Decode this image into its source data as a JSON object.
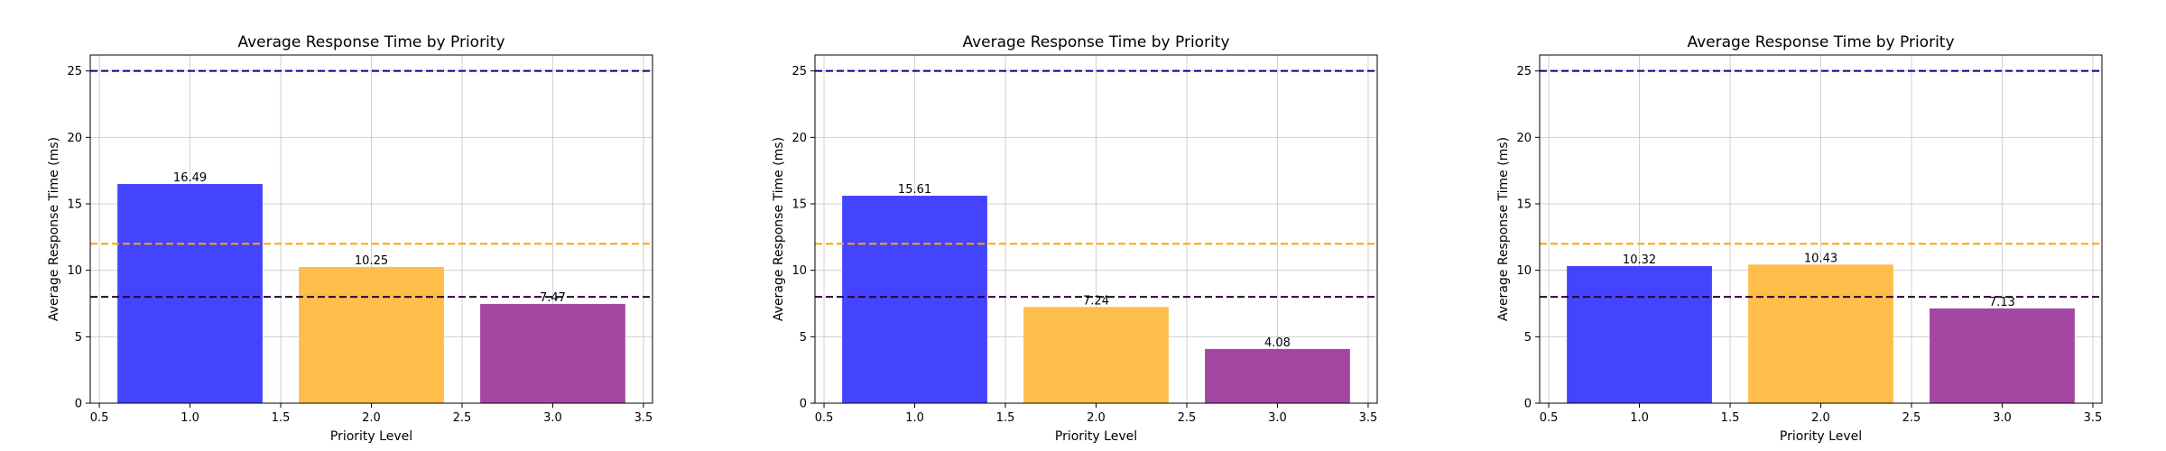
{
  "chart_data": [
    {
      "type": "bar",
      "title": "Average Response Time by Priority",
      "xlabel": "Priority Level",
      "ylabel": "Average Response Time (ms)",
      "x": [
        1.0,
        2.0,
        3.0
      ],
      "values": [
        16.49,
        10.25,
        7.47
      ],
      "value_labels": [
        "16.49",
        "10.25",
        "7.47"
      ],
      "bar_width": 0.8,
      "bar_colors": [
        "#4444ff",
        "#ffbd4a",
        "#a347a3"
      ],
      "xlim": [
        0.45,
        3.55
      ],
      "ylim": [
        0,
        26.2
      ],
      "xticks": [
        0.5,
        1.0,
        1.5,
        2.0,
        2.5,
        3.0,
        3.5
      ],
      "xtick_labels": [
        "0.5",
        "1.0",
        "1.5",
        "2.0",
        "2.5",
        "3.0",
        "3.5"
      ],
      "yticks": [
        0,
        5,
        10,
        15,
        20,
        25
      ],
      "ytick_labels": [
        "0",
        "5",
        "10",
        "15",
        "20",
        "25"
      ],
      "reference_lines": [
        {
          "y": 25,
          "color": "#00008b"
        },
        {
          "y": 12,
          "color": "#ffa500"
        },
        {
          "y": 8,
          "color": "#2b0033"
        }
      ],
      "grid": true
    },
    {
      "type": "bar",
      "title": "Average Response Time by Priority",
      "xlabel": "Priority Level",
      "ylabel": "Average Response Time (ms)",
      "x": [
        1.0,
        2.0,
        3.0
      ],
      "values": [
        15.61,
        7.24,
        4.08
      ],
      "value_labels": [
        "15.61",
        "7.24",
        "4.08"
      ],
      "bar_width": 0.8,
      "bar_colors": [
        "#4444ff",
        "#ffbd4a",
        "#a347a3"
      ],
      "xlim": [
        0.45,
        3.55
      ],
      "ylim": [
        0,
        26.2
      ],
      "xticks": [
        0.5,
        1.0,
        1.5,
        2.0,
        2.5,
        3.0,
        3.5
      ],
      "xtick_labels": [
        "0.5",
        "1.0",
        "1.5",
        "2.0",
        "2.5",
        "3.0",
        "3.5"
      ],
      "yticks": [
        0,
        5,
        10,
        15,
        20,
        25
      ],
      "ytick_labels": [
        "0",
        "5",
        "10",
        "15",
        "20",
        "25"
      ],
      "reference_lines": [
        {
          "y": 25,
          "color": "#00008b"
        },
        {
          "y": 12,
          "color": "#ffa500"
        },
        {
          "y": 8,
          "color": "#2b0033"
        }
      ],
      "grid": true
    },
    {
      "type": "bar",
      "title": "Average Response Time by Priority",
      "xlabel": "Priority Level",
      "ylabel": "Average Response Time (ms)",
      "x": [
        1.0,
        2.0,
        3.0
      ],
      "values": [
        10.32,
        10.43,
        7.13
      ],
      "value_labels": [
        "10.32",
        "10.43",
        "7.13"
      ],
      "bar_width": 0.8,
      "bar_colors": [
        "#4444ff",
        "#ffbd4a",
        "#a347a3"
      ],
      "xlim": [
        0.45,
        3.55
      ],
      "ylim": [
        0,
        26.2
      ],
      "xticks": [
        0.5,
        1.0,
        1.5,
        2.0,
        2.5,
        3.0,
        3.5
      ],
      "xtick_labels": [
        "0.5",
        "1.0",
        "1.5",
        "2.0",
        "2.5",
        "3.0",
        "3.5"
      ],
      "yticks": [
        0,
        5,
        10,
        15,
        20,
        25
      ],
      "ytick_labels": [
        "0",
        "5",
        "10",
        "15",
        "20",
        "25"
      ],
      "reference_lines": [
        {
          "y": 25,
          "color": "#00008b"
        },
        {
          "y": 12,
          "color": "#ffa500"
        },
        {
          "y": 8,
          "color": "#2b0033"
        }
      ],
      "grid": true
    }
  ]
}
